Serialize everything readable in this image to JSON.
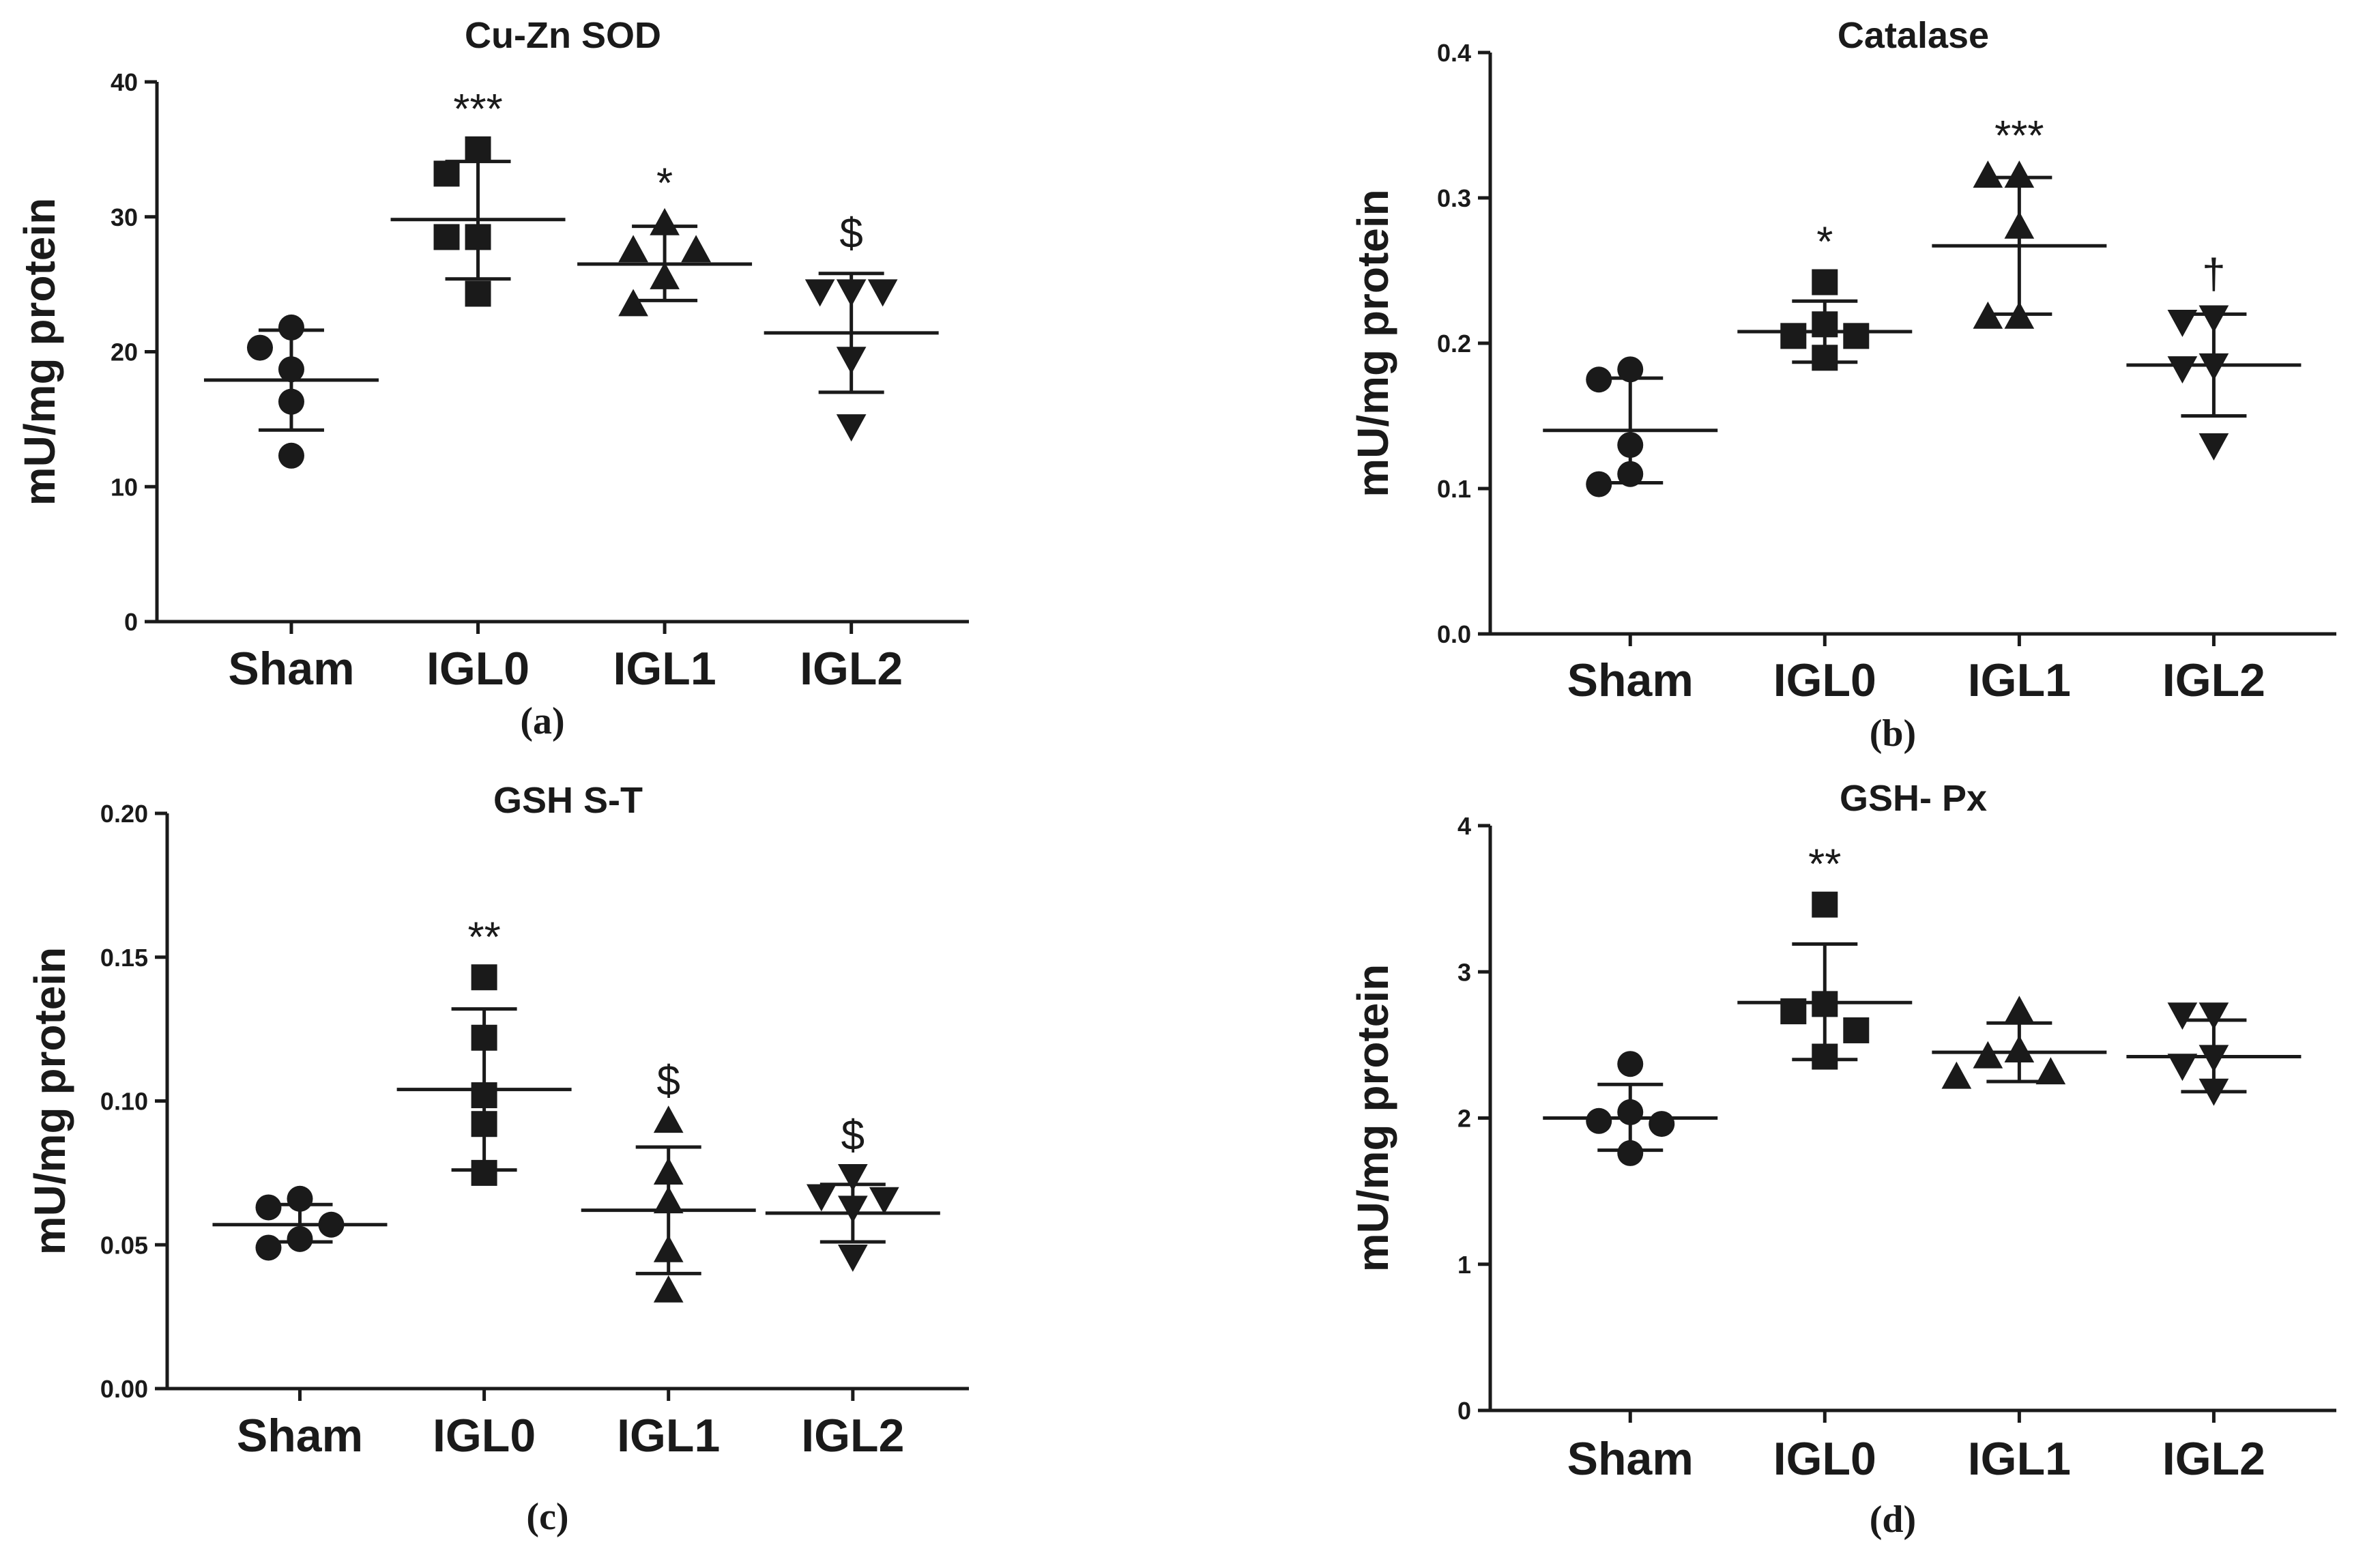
{
  "chart_data": [
    {
      "panel_label": "(a)",
      "type": "scatter",
      "title": "Cu-Zn SOD",
      "ylabel": "mU/mg protein",
      "xlabel": "",
      "ylim": [
        0,
        40
      ],
      "yticks": [
        0,
        10,
        20,
        30,
        40
      ],
      "ytick_labels": [
        "0",
        "10",
        "20",
        "30",
        "40"
      ],
      "categories": [
        "Sham",
        "IGL0",
        "IGL1",
        "IGL2"
      ],
      "groups": [
        {
          "name": "Sham",
          "marker": "circle",
          "points": [
            21.8,
            20.3,
            18.7,
            16.3,
            12.3
          ],
          "mean": 17.9,
          "sd_low": 14.2,
          "sd_high": 21.6,
          "annotation": ""
        },
        {
          "name": "IGL0",
          "marker": "square",
          "points": [
            35.0,
            33.2,
            28.5,
            28.5,
            24.3
          ],
          "mean": 29.8,
          "sd_low": 25.4,
          "sd_high": 34.1,
          "annotation": "***"
        },
        {
          "name": "IGL1",
          "marker": "triangle-up",
          "points": [
            29.5,
            27.5,
            27.5,
            25.5,
            23.5
          ],
          "mean": 26.5,
          "sd_low": 23.8,
          "sd_high": 29.3,
          "annotation": "*"
        },
        {
          "name": "IGL2",
          "marker": "triangle-down",
          "points": [
            24.5,
            24.5,
            24.5,
            19.5,
            14.5
          ],
          "mean": 21.4,
          "sd_low": 17.0,
          "sd_high": 25.8,
          "annotation": "$"
        }
      ]
    },
    {
      "panel_label": "(b)",
      "type": "scatter",
      "title": "Catalase",
      "ylabel": "mU/mg protein",
      "xlabel": "",
      "ylim": [
        0,
        0.4
      ],
      "yticks": [
        0,
        0.1,
        0.2,
        0.3,
        0.4
      ],
      "ytick_labels": [
        "0.0",
        "0.1",
        "0.2",
        "0.3",
        "0.4"
      ],
      "categories": [
        "Sham",
        "IGL0",
        "IGL1",
        "IGL2"
      ],
      "groups": [
        {
          "name": "Sham",
          "marker": "circle",
          "points": [
            0.182,
            0.175,
            0.13,
            0.11,
            0.103
          ],
          "mean": 0.14,
          "sd_low": 0.104,
          "sd_high": 0.176,
          "annotation": ""
        },
        {
          "name": "IGL0",
          "marker": "square",
          "points": [
            0.242,
            0.213,
            0.205,
            0.205,
            0.19
          ],
          "mean": 0.208,
          "sd_low": 0.187,
          "sd_high": 0.229,
          "annotation": "*"
        },
        {
          "name": "IGL1",
          "marker": "triangle-up",
          "points": [
            0.315,
            0.315,
            0.28,
            0.218,
            0.218
          ],
          "mean": 0.267,
          "sd_low": 0.22,
          "sd_high": 0.314,
          "annotation": "***"
        },
        {
          "name": "IGL2",
          "marker": "triangle-down",
          "points": [
            0.218,
            0.215,
            0.185,
            0.183,
            0.13
          ],
          "mean": 0.185,
          "sd_low": 0.15,
          "sd_high": 0.22,
          "annotation": "†"
        }
      ]
    },
    {
      "panel_label": "(c)",
      "type": "scatter",
      "title": "GSH S-T",
      "ylabel": "mU/mg protein",
      "xlabel": "",
      "ylim": [
        0,
        0.2
      ],
      "yticks": [
        0,
        0.05,
        0.1,
        0.15,
        0.2
      ],
      "ytick_labels": [
        "0.00",
        "0.05",
        "0.10",
        "0.15",
        "0.20"
      ],
      "categories": [
        "Sham",
        "IGL0",
        "IGL1",
        "IGL2"
      ],
      "groups": [
        {
          "name": "Sham",
          "marker": "circle",
          "points": [
            0.066,
            0.063,
            0.057,
            0.052,
            0.049
          ],
          "mean": 0.057,
          "sd_low": 0.051,
          "sd_high": 0.064,
          "annotation": ""
        },
        {
          "name": "IGL0",
          "marker": "square",
          "points": [
            0.143,
            0.122,
            0.102,
            0.092,
            0.075
          ],
          "mean": 0.104,
          "sd_low": 0.076,
          "sd_high": 0.132,
          "annotation": "**"
        },
        {
          "name": "IGL1",
          "marker": "triangle-up",
          "points": [
            0.093,
            0.075,
            0.065,
            0.048,
            0.034
          ],
          "mean": 0.062,
          "sd_low": 0.04,
          "sd_high": 0.084,
          "annotation": "$"
        },
        {
          "name": "IGL2",
          "marker": "triangle-down",
          "points": [
            0.074,
            0.067,
            0.066,
            0.063,
            0.046
          ],
          "mean": 0.061,
          "sd_low": 0.051,
          "sd_high": 0.071,
          "annotation": "$"
        }
      ]
    },
    {
      "panel_label": "(d)",
      "type": "scatter",
      "title": "GSH- Px",
      "ylabel": "mU/mg protein",
      "xlabel": "",
      "ylim": [
        0,
        4
      ],
      "yticks": [
        0,
        1,
        2,
        3,
        4
      ],
      "ytick_labels": [
        "0",
        "1",
        "2",
        "3",
        "4"
      ],
      "categories": [
        "Sham",
        "IGL0",
        "IGL1",
        "IGL2"
      ],
      "groups": [
        {
          "name": "Sham",
          "marker": "circle",
          "points": [
            2.37,
            2.04,
            1.98,
            1.96,
            1.76
          ],
          "mean": 2.0,
          "sd_low": 1.78,
          "sd_high": 2.23,
          "annotation": ""
        },
        {
          "name": "IGL0",
          "marker": "square",
          "points": [
            3.46,
            2.78,
            2.73,
            2.6,
            2.42
          ],
          "mean": 2.79,
          "sd_low": 2.4,
          "sd_high": 3.19,
          "annotation": "**"
        },
        {
          "name": "IGL1",
          "marker": "triangle-up",
          "points": [
            2.73,
            2.46,
            2.42,
            2.31,
            2.28
          ],
          "mean": 2.45,
          "sd_low": 2.25,
          "sd_high": 2.65,
          "annotation": ""
        },
        {
          "name": "IGL2",
          "marker": "triangle-down",
          "points": [
            2.71,
            2.71,
            2.42,
            2.36,
            2.19
          ],
          "mean": 2.42,
          "sd_low": 2.18,
          "sd_high": 2.67,
          "annotation": ""
        }
      ]
    }
  ]
}
